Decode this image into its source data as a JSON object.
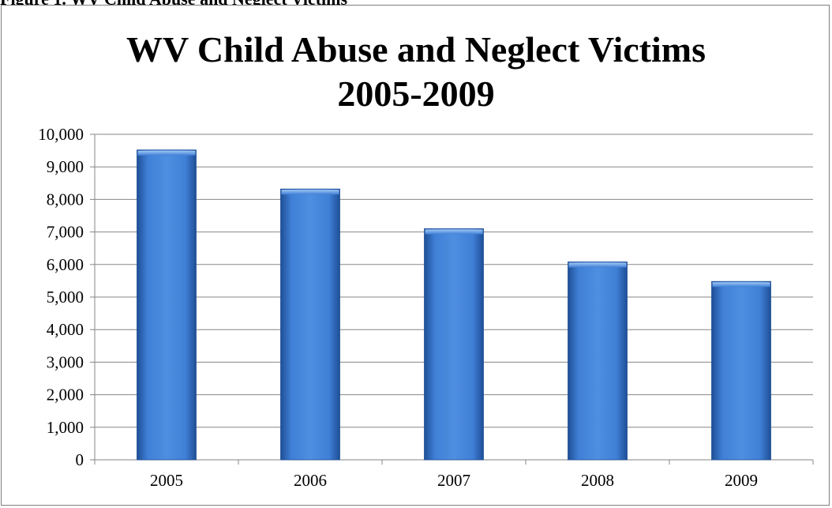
{
  "page": {
    "caption_fragment": "Figure 1. WV Child Abuse and Neglect Victims",
    "chart_title_line1": "WV Child Abuse and Neglect Victims",
    "chart_title_line2": "2005-2009"
  },
  "colors": {
    "bar_main": "#3f7fd6",
    "bar_dark": "#1f4f96",
    "bar_light": "#7fb0ee",
    "gridline": "#868686",
    "axis": "#868686",
    "frame": "#7f7f7f"
  },
  "chart_data": {
    "type": "bar",
    "title": "WV Child Abuse and Neglect Victims 2005-2009",
    "xlabel": "",
    "ylabel": "",
    "categories": [
      "2005",
      "2006",
      "2007",
      "2008",
      "2009"
    ],
    "values": [
      9520,
      8320,
      7100,
      6080,
      5480
    ],
    "ylim": [
      0,
      10000
    ],
    "yticks": [
      "0",
      "1,000",
      "2,000",
      "3,000",
      "4,000",
      "5,000",
      "6,000",
      "7,000",
      "8,000",
      "9,000",
      "10,000"
    ],
    "ytick_values": [
      0,
      1000,
      2000,
      3000,
      4000,
      5000,
      6000,
      7000,
      8000,
      9000,
      10000
    ],
    "grid": true,
    "legend": "none"
  }
}
